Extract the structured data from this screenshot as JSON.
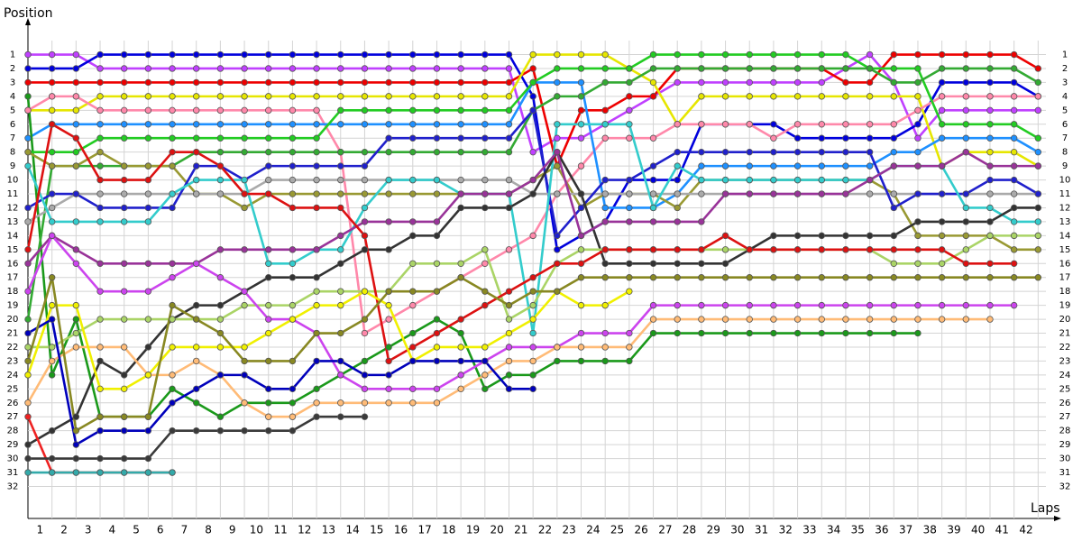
{
  "chart_data": {
    "type": "line",
    "x_label": "Laps",
    "y_label": "Position",
    "x": [
      0,
      1,
      2,
      3,
      4,
      5,
      6,
      7,
      8,
      9,
      10,
      11,
      12,
      13,
      14,
      15,
      16,
      17,
      18,
      19,
      20,
      21,
      22,
      23,
      24,
      25,
      26,
      27,
      28,
      29,
      30,
      31,
      32,
      33,
      34,
      35,
      36,
      37,
      38,
      39,
      40,
      41,
      42
    ],
    "xlim": [
      0,
      42.7
    ],
    "xticks": [
      1,
      2,
      3,
      4,
      5,
      6,
      7,
      8,
      9,
      10,
      11,
      12,
      13,
      14,
      15,
      16,
      17,
      18,
      19,
      20,
      21,
      22,
      23,
      24,
      25,
      26,
      27,
      28,
      29,
      30,
      31,
      32,
      33,
      34,
      35,
      36,
      37,
      38,
      39,
      40,
      41,
      42
    ],
    "ylim": [
      34.3,
      -1.3
    ],
    "yticks": [
      1,
      2,
      3,
      4,
      5,
      6,
      7,
      8,
      9,
      10,
      11,
      12,
      13,
      14,
      15,
      16,
      17,
      18,
      19,
      20,
      21,
      22,
      23,
      24,
      25,
      26,
      27,
      28,
      29,
      30,
      31,
      32
    ],
    "grid": true,
    "series": [
      {
        "color": "#c040ff",
        "values": [
          1,
          1,
          1,
          2,
          2,
          2,
          2,
          2,
          2,
          2,
          2,
          2,
          2,
          2,
          2,
          2,
          2,
          2,
          2,
          2,
          2,
          8,
          7,
          7,
          6,
          5,
          4,
          3,
          3,
          3,
          3,
          3,
          3,
          3,
          2,
          1,
          3,
          7,
          5,
          5,
          5,
          5,
          5
        ]
      },
      {
        "color": "#0000dd",
        "values": [
          2,
          2,
          2,
          1,
          1,
          1,
          1,
          1,
          1,
          1,
          1,
          1,
          1,
          1,
          1,
          1,
          1,
          1,
          1,
          1,
          1,
          4,
          15,
          14,
          13,
          10,
          10,
          10,
          6,
          6,
          6,
          6,
          7,
          7,
          7,
          7,
          7,
          6,
          3,
          3,
          3,
          3,
          4
        ]
      },
      {
        "color": "#ee0000",
        "values": [
          3,
          3,
          3,
          3,
          3,
          3,
          3,
          3,
          3,
          3,
          3,
          3,
          3,
          3,
          3,
          3,
          3,
          3,
          3,
          3,
          3,
          2,
          9,
          5,
          5,
          4,
          4,
          2,
          2,
          2,
          2,
          2,
          2,
          2,
          3,
          3,
          1,
          1,
          1,
          1,
          1,
          1,
          2
        ]
      },
      {
        "color": "#e6e600",
        "values": [
          5,
          5,
          5,
          4,
          4,
          4,
          4,
          4,
          4,
          4,
          4,
          4,
          4,
          4,
          4,
          4,
          4,
          4,
          4,
          4,
          4,
          1,
          1,
          1,
          1,
          2,
          3,
          6,
          4,
          4,
          4,
          4,
          4,
          4,
          4,
          4,
          4,
          4,
          9,
          8,
          8,
          8,
          9
        ]
      },
      {
        "color": "#ff88aa",
        "values": [
          5,
          4,
          4,
          5,
          5,
          5,
          5,
          5,
          5,
          5,
          5,
          5,
          5,
          8,
          21,
          20,
          19,
          18,
          17,
          16,
          15,
          14,
          11,
          9,
          7,
          7,
          7,
          6,
          6,
          6,
          6,
          7,
          6,
          6,
          6,
          6,
          6,
          5,
          4,
          4,
          4,
          4,
          4
        ]
      },
      {
        "color": "#1e90ff",
        "values": [
          7,
          6,
          6,
          6,
          6,
          6,
          6,
          6,
          6,
          6,
          6,
          6,
          6,
          6,
          6,
          6,
          6,
          6,
          6,
          6,
          6,
          3,
          3,
          3,
          12,
          12,
          12,
          11,
          9,
          9,
          9,
          9,
          9,
          9,
          9,
          9,
          8,
          8,
          7,
          7,
          7,
          7,
          8
        ]
      },
      {
        "color": "#1a991a",
        "values": [
          4,
          24,
          20,
          27,
          27,
          27,
          25,
          26,
          27,
          26,
          26,
          26,
          25,
          24,
          23,
          22,
          21,
          20,
          21,
          25,
          24,
          24,
          23,
          23,
          23,
          23,
          21,
          21,
          21,
          21,
          21,
          21,
          21,
          21,
          21,
          21,
          21,
          21,
          null,
          null,
          null,
          null,
          null
        ]
      },
      {
        "color": "#22cc22",
        "values": [
          8,
          8,
          8,
          7,
          7,
          7,
          7,
          7,
          7,
          7,
          7,
          7,
          7,
          5,
          5,
          5,
          5,
          5,
          5,
          5,
          5,
          3,
          2,
          2,
          2,
          2,
          1,
          1,
          1,
          1,
          1,
          1,
          1,
          1,
          1,
          2,
          2,
          2,
          6,
          6,
          6,
          6,
          7
        ]
      },
      {
        "color": "#33aa33",
        "values": [
          20,
          9,
          9,
          9,
          9,
          9,
          9,
          8,
          8,
          8,
          8,
          8,
          8,
          8,
          8,
          8,
          8,
          8,
          8,
          8,
          8,
          5,
          4,
          4,
          3,
          3,
          2,
          2,
          2,
          2,
          2,
          2,
          2,
          2,
          2,
          2,
          3,
          3,
          2,
          2,
          2,
          2,
          3
        ]
      },
      {
        "color": "#999933",
        "values": [
          8,
          9,
          9,
          8,
          9,
          9,
          9,
          11,
          11,
          12,
          11,
          11,
          11,
          11,
          11,
          11,
          11,
          11,
          11,
          11,
          11,
          10,
          9,
          12,
          11,
          11,
          11,
          12,
          10,
          10,
          10,
          10,
          10,
          10,
          10,
          10,
          11,
          14,
          14,
          14,
          14,
          15,
          15
        ]
      },
      {
        "color": "#aaaaaa",
        "values": [
          13,
          12,
          11,
          11,
          11,
          11,
          11,
          11,
          11,
          11,
          10,
          10,
          10,
          10,
          10,
          10,
          10,
          10,
          10,
          10,
          10,
          11,
          11,
          11,
          11,
          11,
          11,
          11,
          11,
          11,
          11,
          11,
          11,
          11,
          11,
          11,
          11,
          11,
          11,
          11,
          11,
          11,
          11
        ]
      },
      {
        "color": "#2020cc",
        "values": [
          12,
          11,
          11,
          12,
          12,
          12,
          12,
          9,
          9,
          10,
          9,
          9,
          9,
          9,
          9,
          7,
          7,
          7,
          7,
          7,
          7,
          5,
          14,
          12,
          10,
          10,
          9,
          8,
          8,
          8,
          8,
          8,
          8,
          8,
          8,
          8,
          12,
          11,
          11,
          11,
          10,
          10,
          11
        ]
      },
      {
        "color": "#33cccc",
        "values": [
          9,
          13,
          13,
          13,
          13,
          13,
          11,
          10,
          10,
          10,
          16,
          16,
          15,
          15,
          12,
          10,
          10,
          10,
          11,
          11,
          11,
          21,
          6,
          6,
          6,
          6,
          12,
          9,
          10,
          10,
          10,
          10,
          10,
          10,
          10,
          10,
          9,
          9,
          9,
          12,
          12,
          13,
          13
        ]
      },
      {
        "color": "#333333",
        "values": [
          29,
          28,
          27,
          23,
          24,
          22,
          20,
          19,
          19,
          18,
          17,
          17,
          17,
          16,
          15,
          15,
          14,
          14,
          12,
          12,
          12,
          11,
          8,
          11,
          16,
          16,
          16,
          16,
          16,
          16,
          15,
          14,
          14,
          14,
          14,
          14,
          14,
          13,
          13,
          13,
          13,
          12,
          12
        ]
      },
      {
        "color": "#993399",
        "values": [
          16,
          14,
          15,
          16,
          16,
          16,
          16,
          16,
          15,
          15,
          15,
          15,
          15,
          14,
          13,
          13,
          13,
          13,
          11,
          11,
          11,
          10,
          8,
          14,
          13,
          13,
          13,
          13,
          13,
          11,
          11,
          11,
          11,
          11,
          11,
          10,
          9,
          9,
          9,
          8,
          9,
          9,
          9
        ]
      },
      {
        "color": "#aad466",
        "values": [
          22,
          22,
          21,
          20,
          20,
          20,
          20,
          20,
          20,
          19,
          19,
          19,
          18,
          18,
          18,
          18,
          16,
          16,
          16,
          15,
          20,
          19,
          16,
          15,
          15,
          15,
          15,
          15,
          15,
          15,
          15,
          15,
          15,
          15,
          15,
          15,
          16,
          16,
          16,
          15,
          14,
          14,
          14
        ]
      },
      {
        "color": "#cc44ee",
        "values": [
          18,
          14,
          16,
          18,
          18,
          18,
          17,
          16,
          17,
          18,
          20,
          20,
          21,
          24,
          25,
          25,
          25,
          25,
          24,
          23,
          22,
          22,
          22,
          21,
          21,
          21,
          19,
          19,
          19,
          19,
          19,
          19,
          19,
          19,
          19,
          19,
          19,
          19,
          19,
          19,
          19,
          19,
          null
        ]
      },
      {
        "color": "#ffbb77",
        "values": [
          26,
          23,
          22,
          22,
          22,
          24,
          24,
          23,
          24,
          26,
          27,
          27,
          26,
          26,
          26,
          26,
          26,
          26,
          25,
          24,
          23,
          23,
          22,
          22,
          22,
          22,
          20,
          20,
          20,
          20,
          20,
          20,
          20,
          20,
          20,
          20,
          20,
          20,
          20,
          20,
          20,
          null,
          null
        ]
      },
      {
        "color": "#dd1111",
        "values": [
          15,
          6,
          7,
          10,
          10,
          10,
          8,
          8,
          9,
          11,
          11,
          12,
          12,
          12,
          14,
          23,
          22,
          21,
          20,
          19,
          18,
          17,
          16,
          16,
          15,
          15,
          15,
          15,
          15,
          14,
          15,
          15,
          15,
          15,
          15,
          15,
          15,
          15,
          15,
          16,
          16,
          16,
          null
        ]
      },
      {
        "color": "#ee2222",
        "values": [
          27,
          31,
          31,
          31,
          31,
          31,
          31,
          null,
          null,
          null,
          null,
          null,
          null,
          null,
          null,
          null,
          null,
          null,
          null,
          null,
          null,
          null,
          null,
          null,
          null,
          null,
          null,
          null,
          null,
          null,
          null,
          null,
          null,
          null,
          null,
          null,
          null,
          null,
          null,
          null,
          null,
          null,
          null
        ]
      },
      {
        "color": "#33aaaa",
        "values": [
          31,
          31,
          31,
          31,
          31,
          31,
          31,
          null,
          null,
          null,
          null,
          null,
          null,
          null,
          null,
          null,
          null,
          null,
          null,
          null,
          null,
          null,
          null,
          null,
          null,
          null,
          null,
          null,
          null,
          null,
          null,
          null,
          null,
          null,
          null,
          null,
          null,
          null,
          null,
          null,
          null,
          null,
          null
        ]
      },
      {
        "color": "#f0f000",
        "values": [
          24,
          19,
          19,
          25,
          25,
          24,
          22,
          22,
          22,
          22,
          21,
          20,
          19,
          19,
          18,
          19,
          23,
          22,
          22,
          22,
          21,
          20,
          18,
          19,
          19,
          18,
          null,
          null,
          null,
          null,
          null,
          null,
          null,
          null,
          null,
          null,
          null,
          null,
          null,
          null,
          null,
          null,
          null
        ]
      },
      {
        "color": "#3a3a3a",
        "values": [
          30,
          30,
          30,
          30,
          30,
          30,
          28,
          28,
          28,
          28,
          28,
          28,
          27,
          27,
          27,
          null,
          null,
          null,
          null,
          null,
          null,
          null,
          null,
          null,
          null,
          null,
          null,
          null,
          null,
          null,
          null,
          null,
          null,
          null,
          null,
          null,
          null,
          null,
          null,
          null,
          null,
          null,
          null
        ]
      },
      {
        "color": "#0000bb",
        "values": [
          21,
          20,
          29,
          28,
          28,
          28,
          26,
          25,
          24,
          24,
          25,
          25,
          23,
          23,
          24,
          24,
          23,
          23,
          23,
          23,
          25,
          25,
          null,
          null,
          null,
          null,
          null,
          null,
          null,
          null,
          null,
          null,
          null,
          null,
          null,
          null,
          null,
          null,
          null,
          null,
          null,
          null,
          null
        ]
      },
      {
        "color": "#888822",
        "values": [
          23,
          17,
          28,
          27,
          27,
          27,
          19,
          20,
          21,
          23,
          23,
          23,
          21,
          21,
          20,
          18,
          18,
          18,
          17,
          18,
          19,
          18,
          18,
          17,
          17,
          17,
          17,
          17,
          17,
          17,
          17,
          17,
          17,
          17,
          17,
          17,
          17,
          17,
          17,
          17,
          17,
          17,
          17
        ]
      }
    ]
  }
}
